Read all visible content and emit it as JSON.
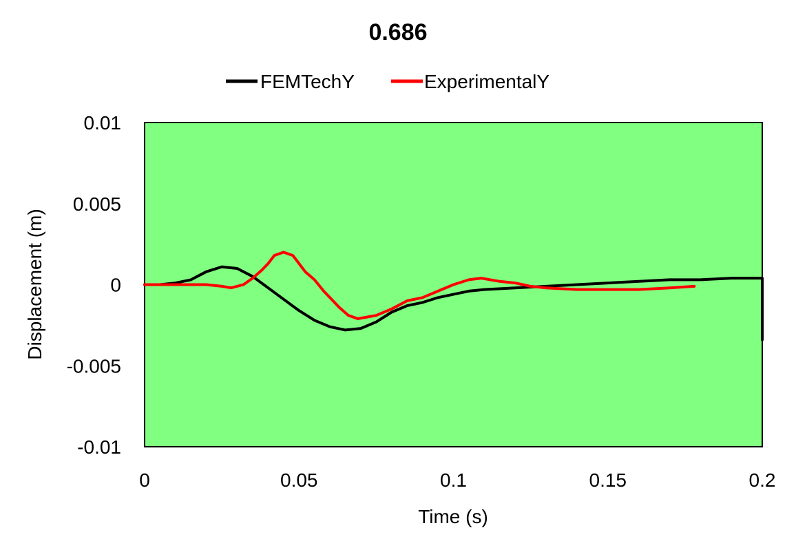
{
  "chart_data": {
    "type": "line",
    "title": "0.686",
    "xlabel": "Time (s)",
    "ylabel": "Displacement (m)",
    "xlim": [
      0,
      0.2
    ],
    "ylim": [
      -0.01,
      0.01
    ],
    "x_ticks": [
      0,
      0.05,
      0.1,
      0.15,
      0.2
    ],
    "x_tick_labels": [
      "0",
      "0.05",
      "0.1",
      "0.15",
      "0.2"
    ],
    "y_ticks": [
      0.01,
      0.005,
      0,
      -0.005,
      -0.01
    ],
    "y_tick_labels": [
      "0.01",
      "0.005",
      "0",
      "-0.005",
      "-0.01"
    ],
    "grid": false,
    "legend_position": "top",
    "plot_background": "#80ff80",
    "series": [
      {
        "name": "FEMTechY",
        "color": "#000000",
        "points": [
          [
            0,
            0
          ],
          [
            0.005,
            0.0
          ],
          [
            0.01,
            0.0001
          ],
          [
            0.015,
            0.0003
          ],
          [
            0.02,
            0.0008
          ],
          [
            0.025,
            0.0011
          ],
          [
            0.03,
            0.001
          ],
          [
            0.035,
            0.0005
          ],
          [
            0.04,
            -0.0002
          ],
          [
            0.045,
            -0.0009
          ],
          [
            0.05,
            -0.0016
          ],
          [
            0.055,
            -0.0022
          ],
          [
            0.06,
            -0.0026
          ],
          [
            0.065,
            -0.0028
          ],
          [
            0.07,
            -0.0027
          ],
          [
            0.075,
            -0.0023
          ],
          [
            0.08,
            -0.0017
          ],
          [
            0.085,
            -0.0013
          ],
          [
            0.09,
            -0.0011
          ],
          [
            0.095,
            -0.0008
          ],
          [
            0.1,
            -0.0006
          ],
          [
            0.105,
            -0.0004
          ],
          [
            0.11,
            -0.0003
          ],
          [
            0.12,
            -0.0002
          ],
          [
            0.13,
            -0.0001
          ],
          [
            0.14,
            0.0
          ],
          [
            0.15,
            0.0001
          ],
          [
            0.16,
            0.0002
          ],
          [
            0.17,
            0.0003
          ],
          [
            0.18,
            0.0003
          ],
          [
            0.19,
            0.0004
          ],
          [
            0.2,
            0.0004
          ],
          [
            0.2,
            -0.0034
          ]
        ]
      },
      {
        "name": "ExperimentalY",
        "color": "#ff0000",
        "points": [
          [
            0,
            0
          ],
          [
            0.01,
            0
          ],
          [
            0.02,
            0
          ],
          [
            0.025,
            -0.0001
          ],
          [
            0.028,
            -0.0002
          ],
          [
            0.032,
            0.0
          ],
          [
            0.035,
            0.0004
          ],
          [
            0.038,
            0.0009
          ],
          [
            0.04,
            0.0013
          ],
          [
            0.042,
            0.0018
          ],
          [
            0.045,
            0.002
          ],
          [
            0.048,
            0.0018
          ],
          [
            0.05,
            0.0013
          ],
          [
            0.052,
            0.0008
          ],
          [
            0.055,
            0.0003
          ],
          [
            0.058,
            -0.0004
          ],
          [
            0.06,
            -0.0008
          ],
          [
            0.063,
            -0.0014
          ],
          [
            0.066,
            -0.0019
          ],
          [
            0.069,
            -0.0021
          ],
          [
            0.072,
            -0.002
          ],
          [
            0.075,
            -0.0019
          ],
          [
            0.08,
            -0.0015
          ],
          [
            0.085,
            -0.001
          ],
          [
            0.09,
            -0.0008
          ],
          [
            0.095,
            -0.0004
          ],
          [
            0.1,
            0.0
          ],
          [
            0.105,
            0.0003
          ],
          [
            0.109,
            0.0004
          ],
          [
            0.115,
            0.0002
          ],
          [
            0.12,
            0.0001
          ],
          [
            0.125,
            -0.0001
          ],
          [
            0.13,
            -0.0002
          ],
          [
            0.14,
            -0.0003
          ],
          [
            0.15,
            -0.0003
          ],
          [
            0.16,
            -0.0003
          ],
          [
            0.17,
            -0.0002
          ],
          [
            0.178,
            -0.0001
          ]
        ]
      }
    ]
  }
}
